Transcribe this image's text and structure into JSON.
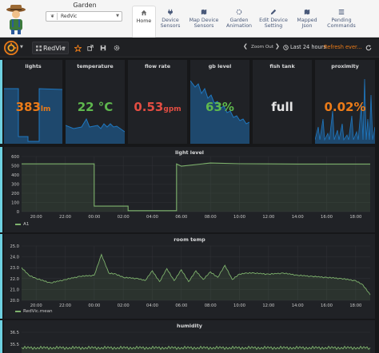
{
  "app": {
    "title": "Garden",
    "device_select": {
      "value": "RedVic"
    },
    "nav": [
      {
        "label1": "Home",
        "label2": "",
        "icon": "home-icon",
        "active": true
      },
      {
        "label1": "Device",
        "label2": "Sensors",
        "icon": "plug-icon",
        "active": false
      },
      {
        "label1": "Map Device",
        "label2": "Sensors",
        "icon": "map-icon",
        "active": false
      },
      {
        "label1": "Garden",
        "label2": "Animation",
        "icon": "spinner-icon",
        "active": false
      },
      {
        "label1": "Edit Device",
        "label2": "Setting",
        "icon": "pencil-icon",
        "active": false
      },
      {
        "label1": "Mapped",
        "label2": "Json",
        "icon": "map-icon",
        "active": false
      },
      {
        "label1": "Pending",
        "label2": "Commands",
        "icon": "list-icon",
        "active": false
      }
    ]
  },
  "toolbar": {
    "dashboard": "RedVic",
    "zoom_out": "Zoom Out",
    "time_range": "Last 24 hours",
    "refresh": "Refresh ever..."
  },
  "stats": [
    {
      "title": "lights",
      "value": "383",
      "unit": "lm",
      "color": "#eb7b18"
    },
    {
      "title": "temperature",
      "value": "22 °C",
      "unit": "",
      "color": "#5fb84e"
    },
    {
      "title": "flow rate",
      "value": "0.53",
      "unit": "gpm",
      "color": "#e24d42"
    },
    {
      "title": "gb level",
      "value": "63%",
      "unit": "",
      "color": "#5fb84e"
    },
    {
      "title": "fish tank",
      "value": "full",
      "unit": "",
      "color": "#e6e6e6"
    },
    {
      "title": "proximity",
      "value": "0.02%",
      "unit": "",
      "color": "#eb7b18"
    }
  ],
  "colors": {
    "series": "#7eb26d",
    "spark": "#1f78c1",
    "accent": "#eb7b18",
    "row_marker": "#6ed0e0"
  },
  "chart_data": [
    {
      "type": "line",
      "title": "light level",
      "x_ticks": [
        "20:00",
        "22:00",
        "00:00",
        "02:00",
        "04:00",
        "06:00",
        "08:00",
        "10:00",
        "12:00",
        "14:00",
        "16:00",
        "18:00"
      ],
      "ylim": [
        0,
        600
      ],
      "y_ticks": [
        0,
        100,
        200,
        300,
        400,
        500,
        "600"
      ],
      "series": [
        {
          "name": "A1",
          "x": [
            "19:00",
            "00:00",
            "00:00",
            "02:20",
            "02:20",
            "05:40",
            "05:40",
            "06:00",
            "08:00",
            "10:00",
            "12:00",
            "14:00",
            "16:00",
            "18:00",
            "19:00"
          ],
          "values": [
            520,
            520,
            60,
            60,
            10,
            10,
            520,
            495,
            530,
            522,
            520,
            518,
            518,
            518,
            518
          ]
        }
      ]
    },
    {
      "type": "line",
      "title": "room temp",
      "x_ticks": [
        "20:00",
        "22:00",
        "00:00",
        "02:00",
        "04:00",
        "06:00",
        "08:00",
        "10:00",
        "12:00",
        "14:00",
        "16:00",
        "18:00"
      ],
      "ylim": [
        20,
        25
      ],
      "y_ticks": [
        20.0,
        21.0,
        22.0,
        23.0,
        24.0,
        25.0
      ],
      "series": [
        {
          "name": "RedVic.mean",
          "x": [
            "19:00",
            "19:30",
            "20:00",
            "21:00",
            "22:00",
            "23:00",
            "00:00",
            "00:30",
            "01:00",
            "01:30",
            "02:00",
            "03:00",
            "03:30",
            "04:00",
            "04:30",
            "05:00",
            "05:30",
            "06:00",
            "06:30",
            "07:00",
            "07:30",
            "08:00",
            "08:30",
            "09:00",
            "09:30",
            "10:00",
            "10:30",
            "11:00",
            "12:00",
            "13:00",
            "14:00",
            "15:00",
            "16:00",
            "17:00",
            "18:00",
            "18:30",
            "19:00"
          ],
          "values": [
            23.0,
            22.3,
            22.0,
            21.6,
            21.9,
            22.2,
            22.3,
            24.2,
            22.5,
            22.4,
            22.1,
            22.0,
            21.8,
            22.7,
            21.7,
            22.9,
            21.8,
            22.8,
            21.7,
            22.7,
            21.9,
            22.6,
            22.1,
            23.2,
            21.9,
            22.4,
            22.5,
            22.5,
            22.4,
            22.5,
            22.3,
            22.2,
            22.1,
            22.0,
            21.8,
            21.4,
            20.5
          ]
        }
      ]
    },
    {
      "type": "line",
      "title": "humidity",
      "ylim": [
        33.5,
        36.5
      ],
      "y_ticks": [
        35.5,
        36.5
      ],
      "series": [
        {
          "name": "humidity",
          "x": [
            "19:00",
            "19:00"
          ],
          "values": [
            35.2,
            35.2
          ]
        }
      ]
    }
  ]
}
